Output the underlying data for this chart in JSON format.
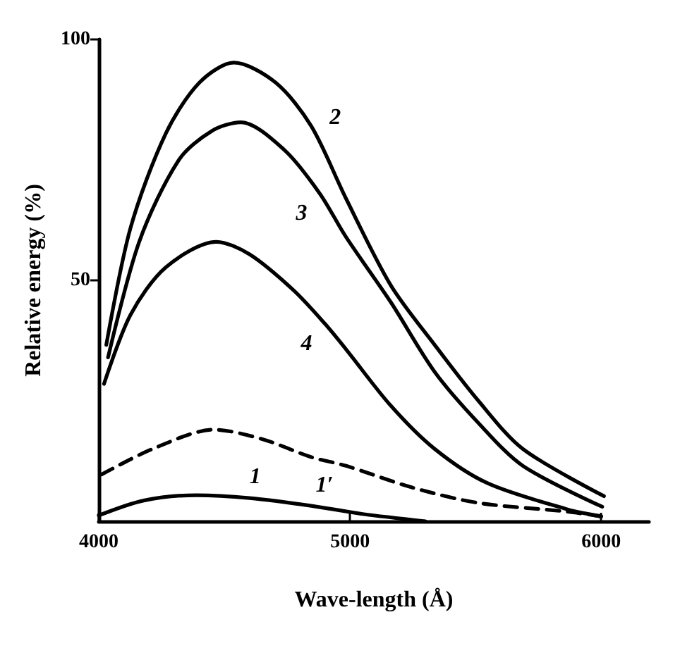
{
  "chart_data": {
    "type": "line",
    "xlabel": "Wave-length (Å)",
    "ylabel": "Relative energy (%)",
    "xlim": [
      4000,
      6190
    ],
    "xticks": [
      4000,
      5000,
      6000
    ],
    "ylim": [
      0,
      100
    ],
    "yticks": [
      50,
      100
    ],
    "grid": false,
    "marker": "none",
    "series": [
      {
        "name": "2",
        "color": "#000000",
        "line_style": "solid",
        "x": [
          4030,
          4126,
          4267,
          4400,
          4538,
          4705,
          4846,
          4984,
          5162,
          5337,
          5511,
          5688,
          6011
        ],
        "values": [
          36.6,
          60.8,
          80.5,
          91,
          95.2,
          91,
          82,
          67,
          49,
          36.6,
          25,
          15,
          5.2
        ]
      },
      {
        "name": "3",
        "color": "#000000",
        "line_style": "solid",
        "x": [
          4037,
          4161,
          4319,
          4450,
          4565,
          4740,
          4880,
          4984,
          5162,
          5337,
          5511,
          5688,
          6004
        ],
        "values": [
          34,
          58,
          75,
          81,
          82.8,
          77,
          68,
          59,
          45.5,
          31,
          20.4,
          11.5,
          3
        ]
      },
      {
        "name": "4",
        "color": "#000000",
        "line_style": "solid",
        "x": [
          4021,
          4126,
          4267,
          4468,
          4600,
          4774,
          4900,
          4984,
          5162,
          5337,
          5547,
          5863,
          6000
        ],
        "values": [
          28.5,
          42.8,
          52.7,
          58,
          55.4,
          48,
          41,
          35.7,
          24,
          15,
          7.9,
          2.5,
          1
        ]
      },
      {
        "name": "1′",
        "color": "#000000",
        "line_style": "dashed",
        "x": [
          4011,
          4214,
          4458,
          4653,
          4846,
          4984,
          5247,
          5511,
          5863,
          6000
        ],
        "values": [
          9.7,
          15,
          19,
          17,
          13.3,
          11.5,
          7,
          3.8,
          2,
          1
        ]
      },
      {
        "name": "1",
        "color": "#000000",
        "line_style": "solid",
        "x": [
          4000,
          4179,
          4389,
          4600,
          4846,
          5050,
          5300
        ],
        "values": [
          1.2,
          4.3,
          5.4,
          4.8,
          3.2,
          1.5,
          0
        ]
      }
    ]
  }
}
